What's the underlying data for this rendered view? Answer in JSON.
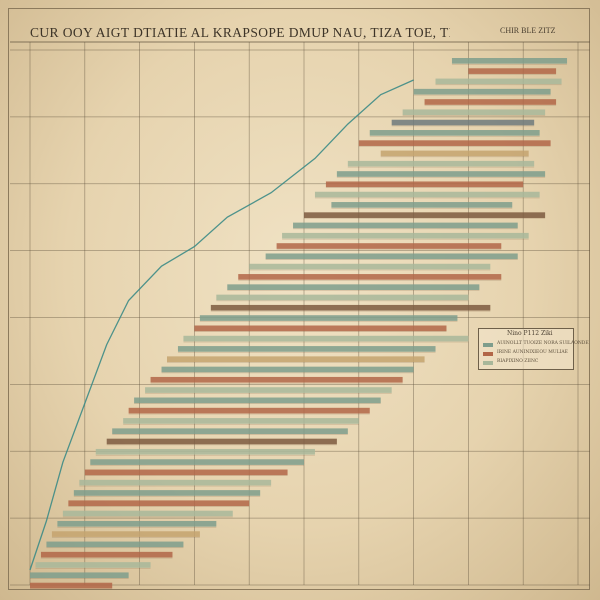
{
  "title": "CUR OOY AIGT DTIATIE AL KRAPSOPE DMUP NAU, TIZA TOE, TIIL EN SEATA.MEBST",
  "corner_label": "CHIR BLE ZITZ",
  "colors": {
    "paper": "#ecdcbb",
    "grid": "#5c4f3a",
    "line": "#3c8b86",
    "teal": "#7e9d8c",
    "sage": "#a8b79a",
    "rust": "#b26648",
    "brown": "#7d5b3f",
    "tan": "#c4a36f",
    "slate": "#6e7a7c"
  },
  "chart_data": {
    "type": "bar",
    "orientation": "horizontal",
    "title": "CUR OOY AIGT DTIATIE AL KRAPSOPE DMUP NAU, TIZA TOE, TIIL EN SEATA.MEBST",
    "xlabel": "",
    "ylabel": "",
    "grid": true,
    "xlim": [
      0,
      100
    ],
    "legend_position": "right",
    "legend": {
      "title": "Nino P112 Ziki",
      "entries": [
        "AUINOLLT TUOIZE NORA SUILAONDE",
        "IRINE AUNINIXIEOU MULIAE",
        "RIAPIXINO ZIINC"
      ]
    },
    "tasks": [
      {
        "start": 77,
        "end": 98,
        "color": "teal"
      },
      {
        "start": 80,
        "end": 96,
        "color": "rust"
      },
      {
        "start": 74,
        "end": 97,
        "color": "sage"
      },
      {
        "start": 70,
        "end": 95,
        "color": "teal"
      },
      {
        "start": 72,
        "end": 96,
        "color": "rust"
      },
      {
        "start": 68,
        "end": 94,
        "color": "sage"
      },
      {
        "start": 66,
        "end": 92,
        "color": "slate"
      },
      {
        "start": 62,
        "end": 93,
        "color": "teal"
      },
      {
        "start": 60,
        "end": 95,
        "color": "rust"
      },
      {
        "start": 64,
        "end": 91,
        "color": "tan"
      },
      {
        "start": 58,
        "end": 92,
        "color": "sage"
      },
      {
        "start": 56,
        "end": 94,
        "color": "teal"
      },
      {
        "start": 54,
        "end": 90,
        "color": "rust"
      },
      {
        "start": 52,
        "end": 93,
        "color": "sage"
      },
      {
        "start": 55,
        "end": 88,
        "color": "teal"
      },
      {
        "start": 50,
        "end": 94,
        "color": "brown"
      },
      {
        "start": 48,
        "end": 89,
        "color": "teal"
      },
      {
        "start": 46,
        "end": 91,
        "color": "sage"
      },
      {
        "start": 45,
        "end": 86,
        "color": "rust"
      },
      {
        "start": 43,
        "end": 89,
        "color": "teal"
      },
      {
        "start": 40,
        "end": 84,
        "color": "sage"
      },
      {
        "start": 38,
        "end": 86,
        "color": "rust"
      },
      {
        "start": 36,
        "end": 82,
        "color": "teal"
      },
      {
        "start": 34,
        "end": 80,
        "color": "sage"
      },
      {
        "start": 33,
        "end": 84,
        "color": "brown"
      },
      {
        "start": 31,
        "end": 78,
        "color": "teal"
      },
      {
        "start": 30,
        "end": 76,
        "color": "rust"
      },
      {
        "start": 28,
        "end": 80,
        "color": "sage"
      },
      {
        "start": 27,
        "end": 74,
        "color": "teal"
      },
      {
        "start": 25,
        "end": 72,
        "color": "tan"
      },
      {
        "start": 24,
        "end": 70,
        "color": "teal"
      },
      {
        "start": 22,
        "end": 68,
        "color": "rust"
      },
      {
        "start": 21,
        "end": 66,
        "color": "sage"
      },
      {
        "start": 19,
        "end": 64,
        "color": "teal"
      },
      {
        "start": 18,
        "end": 62,
        "color": "rust"
      },
      {
        "start": 17,
        "end": 60,
        "color": "sage"
      },
      {
        "start": 15,
        "end": 58,
        "color": "teal"
      },
      {
        "start": 14,
        "end": 56,
        "color": "brown"
      },
      {
        "start": 12,
        "end": 52,
        "color": "sage"
      },
      {
        "start": 11,
        "end": 50,
        "color": "teal"
      },
      {
        "start": 10,
        "end": 47,
        "color": "rust"
      },
      {
        "start": 9,
        "end": 44,
        "color": "sage"
      },
      {
        "start": 8,
        "end": 42,
        "color": "teal"
      },
      {
        "start": 7,
        "end": 40,
        "color": "rust"
      },
      {
        "start": 6,
        "end": 37,
        "color": "sage"
      },
      {
        "start": 5,
        "end": 34,
        "color": "teal"
      },
      {
        "start": 4,
        "end": 31,
        "color": "tan"
      },
      {
        "start": 3,
        "end": 28,
        "color": "teal"
      },
      {
        "start": 2,
        "end": 26,
        "color": "rust"
      },
      {
        "start": 1,
        "end": 22,
        "color": "sage"
      },
      {
        "start": 0,
        "end": 18,
        "color": "teal"
      },
      {
        "start": 0,
        "end": 15,
        "color": "rust"
      }
    ],
    "cumulative_line": [
      {
        "x": 0,
        "y": 0
      },
      {
        "x": 3,
        "y": 10
      },
      {
        "x": 6,
        "y": 22
      },
      {
        "x": 10,
        "y": 34
      },
      {
        "x": 14,
        "y": 46
      },
      {
        "x": 18,
        "y": 55
      },
      {
        "x": 24,
        "y": 62
      },
      {
        "x": 30,
        "y": 66
      },
      {
        "x": 36,
        "y": 72
      },
      {
        "x": 44,
        "y": 77
      },
      {
        "x": 52,
        "y": 84
      },
      {
        "x": 58,
        "y": 91
      },
      {
        "x": 64,
        "y": 97
      },
      {
        "x": 70,
        "y": 100
      }
    ]
  }
}
